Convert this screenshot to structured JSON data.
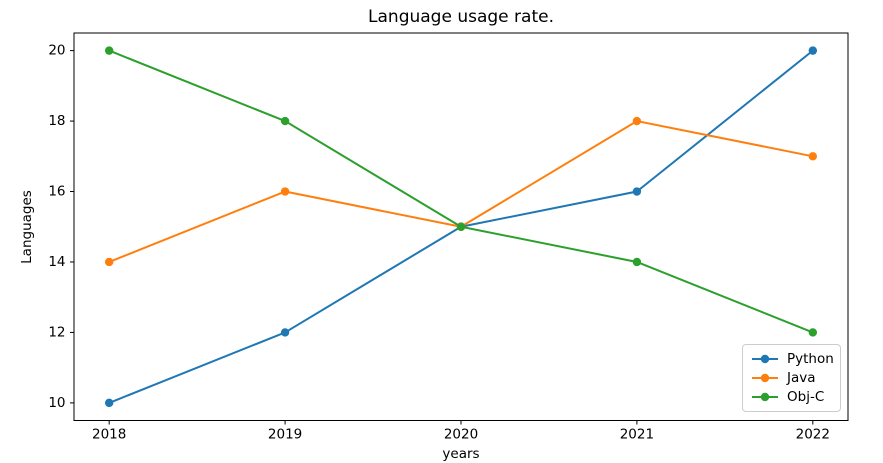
{
  "figure": {
    "background": "#ffffff",
    "text_color": "#000000",
    "spine_color": "#000000"
  },
  "chart_data": {
    "type": "line",
    "title": "Language usage rate.",
    "xlabel": "years",
    "ylabel": "Languages",
    "x": [
      2018,
      2019,
      2020,
      2021,
      2022
    ],
    "xticks": [
      "2018",
      "2019",
      "2020",
      "2021",
      "2022"
    ],
    "yticks": [
      "10",
      "12",
      "14",
      "16",
      "18",
      "20"
    ],
    "xlim": [
      2017.8,
      2022.2
    ],
    "ylim": [
      9.5,
      20.5
    ],
    "grid": false,
    "legend": {
      "position": "lower right",
      "border_color": "#cccccc",
      "entries": [
        "Python",
        "Java",
        "Obj-C"
      ]
    },
    "series": [
      {
        "name": "Python",
        "color": "#1f77b4",
        "marker": "circle",
        "values": [
          10,
          12,
          15,
          16,
          20
        ]
      },
      {
        "name": "Java",
        "color": "#ff7f0e",
        "marker": "circle",
        "values": [
          14,
          16,
          15,
          18,
          17
        ]
      },
      {
        "name": "Obj-C",
        "color": "#2ca02c",
        "marker": "circle",
        "values": [
          20,
          18,
          15,
          14,
          12
        ]
      }
    ]
  }
}
